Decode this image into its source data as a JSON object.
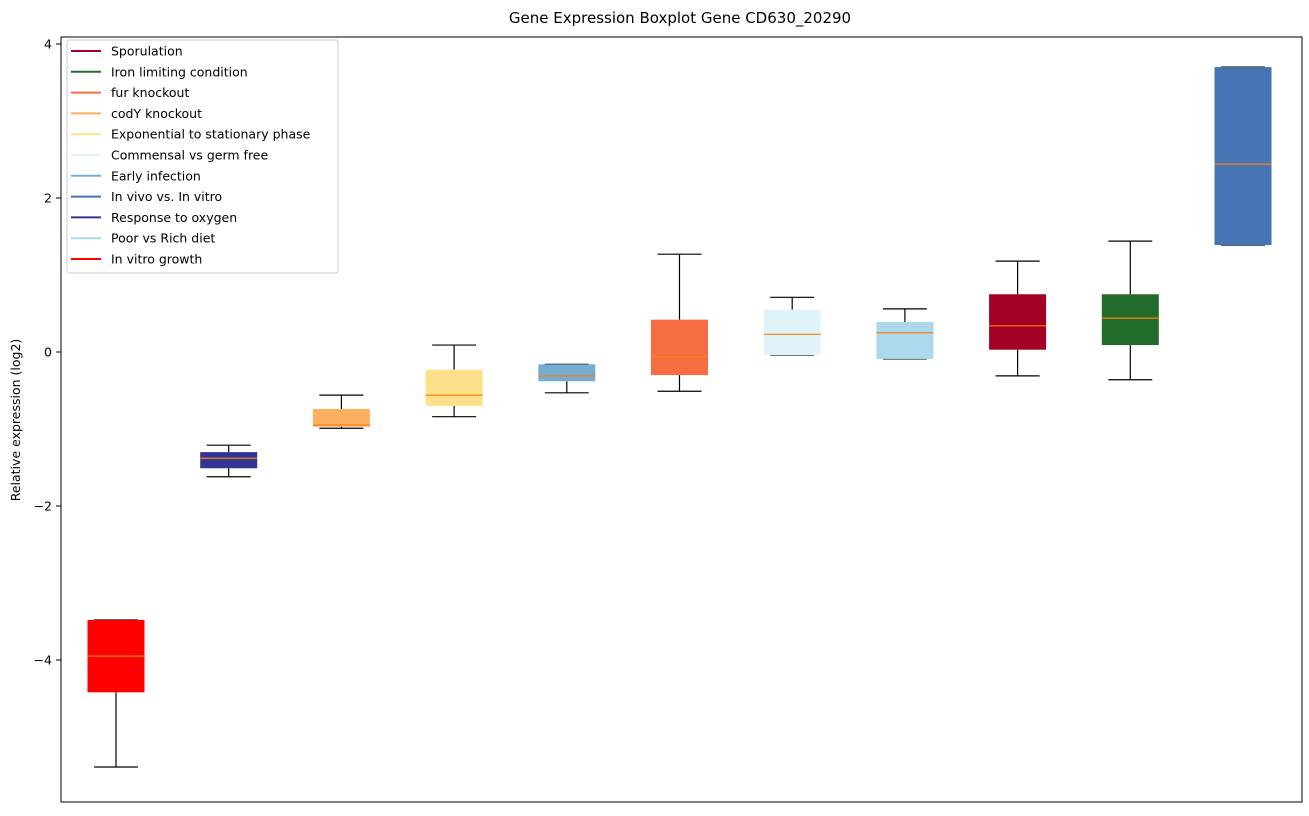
{
  "chart_data": {
    "type": "boxplot",
    "title": "Gene Expression Boxplot Gene CD630_20290",
    "xlabel": "",
    "ylabel": "Relative expression (log2)",
    "ylim": [
      -5.7,
      4.2
    ],
    "yticks": [
      4,
      2,
      0,
      -2,
      -4
    ],
    "ytick_labels": [
      "4",
      "2",
      "0",
      "−2",
      "−4"
    ],
    "grid": false,
    "legend_placement": "top-left",
    "median_color": "#ff7f0e",
    "series": [
      {
        "name": "In vitro growth",
        "color": "#ff0000",
        "whislo": -5.39,
        "q1": -4.42,
        "med": -3.95,
        "q3": -3.48,
        "whishi": -3.48
      },
      {
        "name": "Response to oxygen",
        "color": "#313695",
        "whislo": -1.62,
        "q1": -1.51,
        "med": -1.38,
        "q3": -1.3,
        "whishi": -1.21
      },
      {
        "name": "codY knockout",
        "color": "#fdae61",
        "whislo": -0.99,
        "q1": -0.97,
        "med": -0.95,
        "q3": -0.74,
        "whishi": -0.56
      },
      {
        "name": "Exponential to stationary phase",
        "color": "#fee08b",
        "whislo": -0.84,
        "q1": -0.7,
        "med": -0.56,
        "q3": -0.23,
        "whishi": 0.09
      },
      {
        "name": "Early infection",
        "color": "#74add1",
        "whislo": -0.53,
        "q1": -0.38,
        "med": -0.31,
        "q3": -0.16,
        "whishi": -0.16
      },
      {
        "name": "fur knockout",
        "color": "#f46d43",
        "whislo": -0.51,
        "q1": -0.3,
        "med": -0.06,
        "q3": 0.42,
        "whishi": 1.27
      },
      {
        "name": "Commensal vs germ free",
        "color": "#e0f3f8",
        "whislo": -0.04,
        "q1": -0.04,
        "med": 0.23,
        "q3": 0.55,
        "whishi": 0.71
      },
      {
        "name": "Poor vs Rich diet",
        "color": "#abd9e9",
        "whislo": -0.09,
        "q1": -0.09,
        "med": 0.25,
        "q3": 0.39,
        "whishi": 0.56
      },
      {
        "name": "Sporulation",
        "color": "#a50026",
        "whislo": -0.31,
        "q1": 0.03,
        "med": 0.34,
        "q3": 0.75,
        "whishi": 1.18
      },
      {
        "name": "Iron limiting condition",
        "color": "#236b2b",
        "whislo": -0.36,
        "q1": 0.09,
        "med": 0.44,
        "q3": 0.75,
        "whishi": 1.44
      },
      {
        "name": "In vivo vs. In vitro",
        "color": "#4575b4",
        "whislo": 1.39,
        "q1": 1.39,
        "med": 2.44,
        "q3": 3.7,
        "whishi": 3.7
      }
    ],
    "legend": [
      {
        "label": "Sporulation",
        "color": "#a50026"
      },
      {
        "label": "Iron limiting condition",
        "color": "#236b2b"
      },
      {
        "label": "fur knockout",
        "color": "#f46d43"
      },
      {
        "label": "codY knockout",
        "color": "#fdae61"
      },
      {
        "label": "Exponential to stationary phase",
        "color": "#fee08b"
      },
      {
        "label": "Commensal vs germ free",
        "color": "#e0f3f8"
      },
      {
        "label": "Early infection",
        "color": "#74add1"
      },
      {
        "label": "In vivo vs. In vitro",
        "color": "#4575b4"
      },
      {
        "label": "Response to oxygen",
        "color": "#313695"
      },
      {
        "label": "Poor vs Rich diet",
        "color": "#abd9e9"
      },
      {
        "label": "In vitro growth",
        "color": "#ff0000"
      }
    ]
  }
}
